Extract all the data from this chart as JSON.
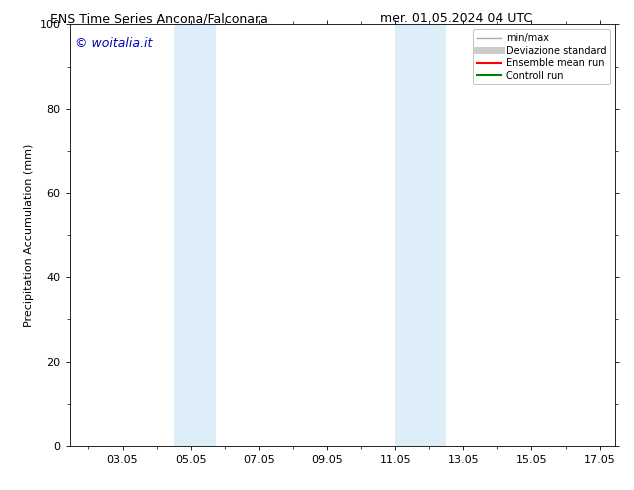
{
  "title_left": "ENS Time Series Ancona/Falconara",
  "title_right": "mer. 01.05.2024 04 UTC",
  "ylabel": "Precipitation Accumulation (mm)",
  "xlim": [
    1.5,
    17.5
  ],
  "ylim": [
    0,
    100
  ],
  "yticks": [
    0,
    20,
    40,
    60,
    80,
    100
  ],
  "xtick_positions": [
    3.05,
    5.05,
    7.05,
    9.05,
    11.05,
    13.05,
    15.05,
    17.05
  ],
  "xtick_labels": [
    "03.05",
    "05.05",
    "07.05",
    "09.05",
    "11.05",
    "13.05",
    "15.05",
    "17.05"
  ],
  "shaded_regions": [
    {
      "xmin": 4.55,
      "xmax": 5.8,
      "color": "#ddeef8"
    },
    {
      "xmin": 11.05,
      "xmax": 12.55,
      "color": "#ddeef8"
    }
  ],
  "watermark_text": "© woitalia.it",
  "watermark_color": "#0000bb",
  "legend_entries": [
    {
      "label": "min/max",
      "color": "#aaaaaa",
      "lw": 1.0
    },
    {
      "label": "Deviazione standard",
      "color": "#cccccc",
      "lw": 5
    },
    {
      "label": "Ensemble mean run",
      "color": "#ff0000",
      "lw": 1.5
    },
    {
      "label": "Controll run",
      "color": "#008000",
      "lw": 1.5
    }
  ],
  "bg_color": "#ffffff",
  "title_fontsize": 9,
  "tick_fontsize": 8,
  "ylabel_fontsize": 8,
  "watermark_fontsize": 9,
  "legend_fontsize": 7
}
